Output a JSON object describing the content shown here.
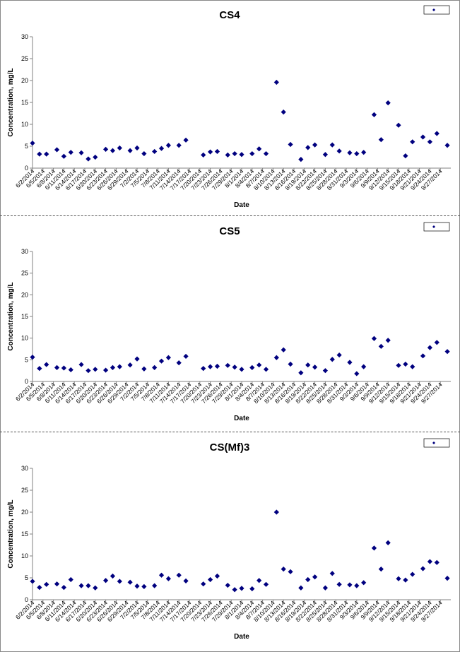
{
  "colors": {
    "marker": "#00007f",
    "axis": "#808080",
    "text": "#000000"
  },
  "chart_data": [
    {
      "type": "scatter",
      "title": "CS4",
      "xlabel": "Date",
      "ylabel": "Concentration, mg/L",
      "ylim": [
        0,
        30
      ],
      "yticks": [
        "0",
        "5",
        "10",
        "15",
        "20",
        "25",
        "30"
      ],
      "xticks": [
        "6/2/2014",
        "6/5/2014",
        "6/8/2014",
        "6/11/2014",
        "6/14/2014",
        "6/17/2014",
        "6/20/2014",
        "6/23/2014",
        "6/26/2014",
        "6/29/2014",
        "7/2/2014",
        "7/5/2014",
        "7/8/2014",
        "7/11/2014",
        "7/14/2014",
        "7/17/2014",
        "7/20/2014",
        "7/23/2014",
        "7/26/2014",
        "7/29/2014",
        "8/1/2014",
        "8/4/2014",
        "8/7/2014",
        "8/10/2014",
        "8/13/2014",
        "8/16/2014",
        "8/19/2014",
        "8/22/2014",
        "8/25/2014",
        "8/28/2014",
        "8/31/2014",
        "9/3/2014",
        "9/6/2014",
        "9/9/2014",
        "9/12/2014",
        "9/15/2014",
        "9/18/2014",
        "9/21/2014",
        "9/24/2014",
        "9/27/2014"
      ],
      "legend": "top-right",
      "grid": false,
      "x": [
        "6/2/2014",
        "6/4/2014",
        "6/6/2014",
        "6/9/2014",
        "6/11/2014",
        "6/13/2014",
        "6/16/2014",
        "6/18/2014",
        "6/20/2014",
        "6/23/2014",
        "6/25/2014",
        "6/27/2014",
        "6/30/2014",
        "7/2/2014",
        "7/4/2014",
        "7/7/2014",
        "7/9/2014",
        "7/11/2014",
        "7/14/2014",
        "7/16/2014",
        "7/21/2014",
        "7/23/2014",
        "7/25/2014",
        "7/28/2014",
        "7/30/2014",
        "8/1/2014",
        "8/4/2014",
        "8/6/2014",
        "8/8/2014",
        "8/11/2014",
        "8/13/2014",
        "8/15/2014",
        "8/18/2014",
        "8/20/2014",
        "8/22/2014",
        "8/25/2014",
        "8/27/2014",
        "8/29/2014",
        "9/1/2014",
        "9/3/2014",
        "9/5/2014",
        "9/8/2014",
        "9/10/2014",
        "9/12/2014",
        "9/15/2014",
        "9/17/2014",
        "9/19/2014",
        "9/22/2014",
        "9/24/2014",
        "9/26/2014",
        "9/29/2014"
      ],
      "y": [
        5.7,
        3.2,
        3.2,
        4.2,
        2.7,
        3.6,
        3.5,
        2.1,
        2.5,
        4.3,
        4.0,
        4.6,
        4.0,
        4.6,
        3.3,
        3.8,
        4.5,
        5.2,
        5.2,
        6.4,
        3.0,
        3.7,
        3.8,
        3.0,
        3.3,
        3.1,
        3.3,
        4.4,
        3.3,
        19.6,
        12.8,
        5.4,
        2.0,
        4.7,
        5.3,
        3.1,
        5.3,
        3.9,
        3.5,
        3.3,
        3.6,
        12.2,
        6.5,
        14.9,
        9.8,
        2.8,
        6.0,
        7.1,
        6.0,
        7.9,
        5.2
      ]
    },
    {
      "type": "scatter",
      "title": "CS5",
      "xlabel": "Date",
      "ylabel": "Concentration, mg/L",
      "ylim": [
        0,
        30
      ],
      "yticks": [
        "0",
        "5",
        "10",
        "15",
        "20",
        "25",
        "30"
      ],
      "xticks": [
        "6/2/2014",
        "6/5/2014",
        "6/8/2014",
        "6/11/2014",
        "6/14/2014",
        "6/17/2014",
        "6/20/2014",
        "6/23/2014",
        "6/26/2014",
        "6/29/2014",
        "7/2/2014",
        "7/5/2014",
        "7/8/2014",
        "7/11/2014",
        "7/14/2014",
        "7/17/2014",
        "7/20/2014",
        "7/23/2014",
        "7/26/2014",
        "7/29/2014",
        "8/1/2014",
        "8/4/2014",
        "8/7/2014",
        "8/10/2014",
        "8/13/2014",
        "8/16/2014",
        "8/19/2014",
        "8/22/2014",
        "8/25/2014",
        "8/28/2014",
        "8/31/2014",
        "9/3/2014",
        "9/6/2014",
        "9/9/2014",
        "9/12/2014",
        "9/15/2014",
        "9/18/2014",
        "9/21/2014",
        "9/24/2014",
        "9/27/2014"
      ],
      "legend": "top-right",
      "grid": false,
      "x": [
        "6/2/2014",
        "6/4/2014",
        "6/6/2014",
        "6/9/2014",
        "6/11/2014",
        "6/13/2014",
        "6/16/2014",
        "6/18/2014",
        "6/20/2014",
        "6/23/2014",
        "6/25/2014",
        "6/27/2014",
        "6/30/2014",
        "7/2/2014",
        "7/4/2014",
        "7/7/2014",
        "7/9/2014",
        "7/11/2014",
        "7/14/2014",
        "7/16/2014",
        "7/21/2014",
        "7/23/2014",
        "7/25/2014",
        "7/28/2014",
        "7/30/2014",
        "8/1/2014",
        "8/4/2014",
        "8/6/2014",
        "8/8/2014",
        "8/11/2014",
        "8/13/2014",
        "8/15/2014",
        "8/18/2014",
        "8/20/2014",
        "8/22/2014",
        "8/25/2014",
        "8/27/2014",
        "8/29/2014",
        "9/1/2014",
        "9/3/2014",
        "9/5/2014",
        "9/8/2014",
        "9/10/2014",
        "9/12/2014",
        "9/15/2014",
        "9/17/2014",
        "9/19/2014",
        "9/22/2014",
        "9/24/2014",
        "9/26/2014",
        "9/29/2014"
      ],
      "y": [
        5.6,
        3.0,
        3.9,
        3.2,
        3.1,
        2.7,
        3.9,
        2.5,
        2.8,
        2.6,
        3.2,
        3.4,
        3.8,
        5.2,
        2.9,
        3.2,
        4.7,
        5.5,
        4.3,
        5.8,
        3.0,
        3.4,
        3.5,
        3.7,
        3.3,
        2.8,
        3.2,
        3.8,
        2.8,
        5.5,
        7.3,
        4.0,
        2.0,
        3.8,
        3.3,
        2.5,
        5.1,
        6.1,
        4.4,
        1.8,
        3.4,
        9.9,
        8.1,
        9.5,
        3.7,
        4.0,
        3.4,
        5.9,
        7.8,
        9.0,
        6.9
      ]
    },
    {
      "type": "scatter",
      "title": "CS(Mf)3",
      "xlabel": "Date",
      "ylabel": "Concentration, mg/L",
      "ylim": [
        0,
        30
      ],
      "yticks": [
        "0",
        "5",
        "10",
        "15",
        "20",
        "25",
        "30"
      ],
      "xticks": [
        "6/2/2014",
        "6/5/2014",
        "6/8/2014",
        "6/11/2014",
        "6/14/2014",
        "6/17/2014",
        "6/20/2014",
        "6/23/2014",
        "6/26/2014",
        "6/29/2014",
        "7/2/2014",
        "7/5/2014",
        "7/8/2014",
        "7/11/2014",
        "7/14/2014",
        "7/17/2014",
        "7/20/2014",
        "7/23/2014",
        "7/26/2014",
        "7/29/2014",
        "8/1/2014",
        "8/4/2014",
        "8/7/2014",
        "8/10/2014",
        "8/13/2014",
        "8/16/2014",
        "8/19/2014",
        "8/22/2014",
        "8/25/2014",
        "8/28/2014",
        "8/31/2014",
        "9/3/2014",
        "9/6/2014",
        "9/9/2014",
        "9/12/2014",
        "9/15/2014",
        "9/18/2014",
        "9/21/2014",
        "9/24/2014",
        "9/27/2014"
      ],
      "legend": "top-right",
      "grid": false,
      "x": [
        "6/2/2014",
        "6/4/2014",
        "6/6/2014",
        "6/9/2014",
        "6/11/2014",
        "6/13/2014",
        "6/16/2014",
        "6/18/2014",
        "6/20/2014",
        "6/23/2014",
        "6/25/2014",
        "6/27/2014",
        "6/30/2014",
        "7/2/2014",
        "7/4/2014",
        "7/7/2014",
        "7/9/2014",
        "7/11/2014",
        "7/14/2014",
        "7/16/2014",
        "7/21/2014",
        "7/23/2014",
        "7/25/2014",
        "7/28/2014",
        "7/30/2014",
        "8/1/2014",
        "8/4/2014",
        "8/6/2014",
        "8/8/2014",
        "8/11/2014",
        "8/13/2014",
        "8/15/2014",
        "8/18/2014",
        "8/20/2014",
        "8/22/2014",
        "8/25/2014",
        "8/27/2014",
        "8/29/2014",
        "9/1/2014",
        "9/3/2014",
        "9/5/2014",
        "9/8/2014",
        "9/10/2014",
        "9/12/2014",
        "9/15/2014",
        "9/17/2014",
        "9/19/2014",
        "9/22/2014",
        "9/24/2014",
        "9/26/2014",
        "9/29/2014"
      ],
      "y": [
        4.2,
        2.8,
        3.5,
        3.6,
        2.8,
        4.6,
        3.2,
        3.2,
        2.7,
        4.4,
        5.4,
        4.2,
        4.0,
        3.1,
        3.0,
        3.2,
        5.6,
        4.8,
        5.6,
        4.3,
        3.6,
        4.6,
        5.4,
        3.3,
        2.3,
        2.6,
        2.5,
        4.4,
        3.5,
        20.0,
        7.0,
        6.4,
        2.7,
        4.6,
        5.2,
        2.7,
        6.0,
        3.5,
        3.4,
        3.2,
        3.9,
        11.8,
        7.0,
        13.0,
        4.8,
        4.5,
        5.8,
        7.1,
        8.7,
        8.5,
        4.9
      ]
    }
  ]
}
